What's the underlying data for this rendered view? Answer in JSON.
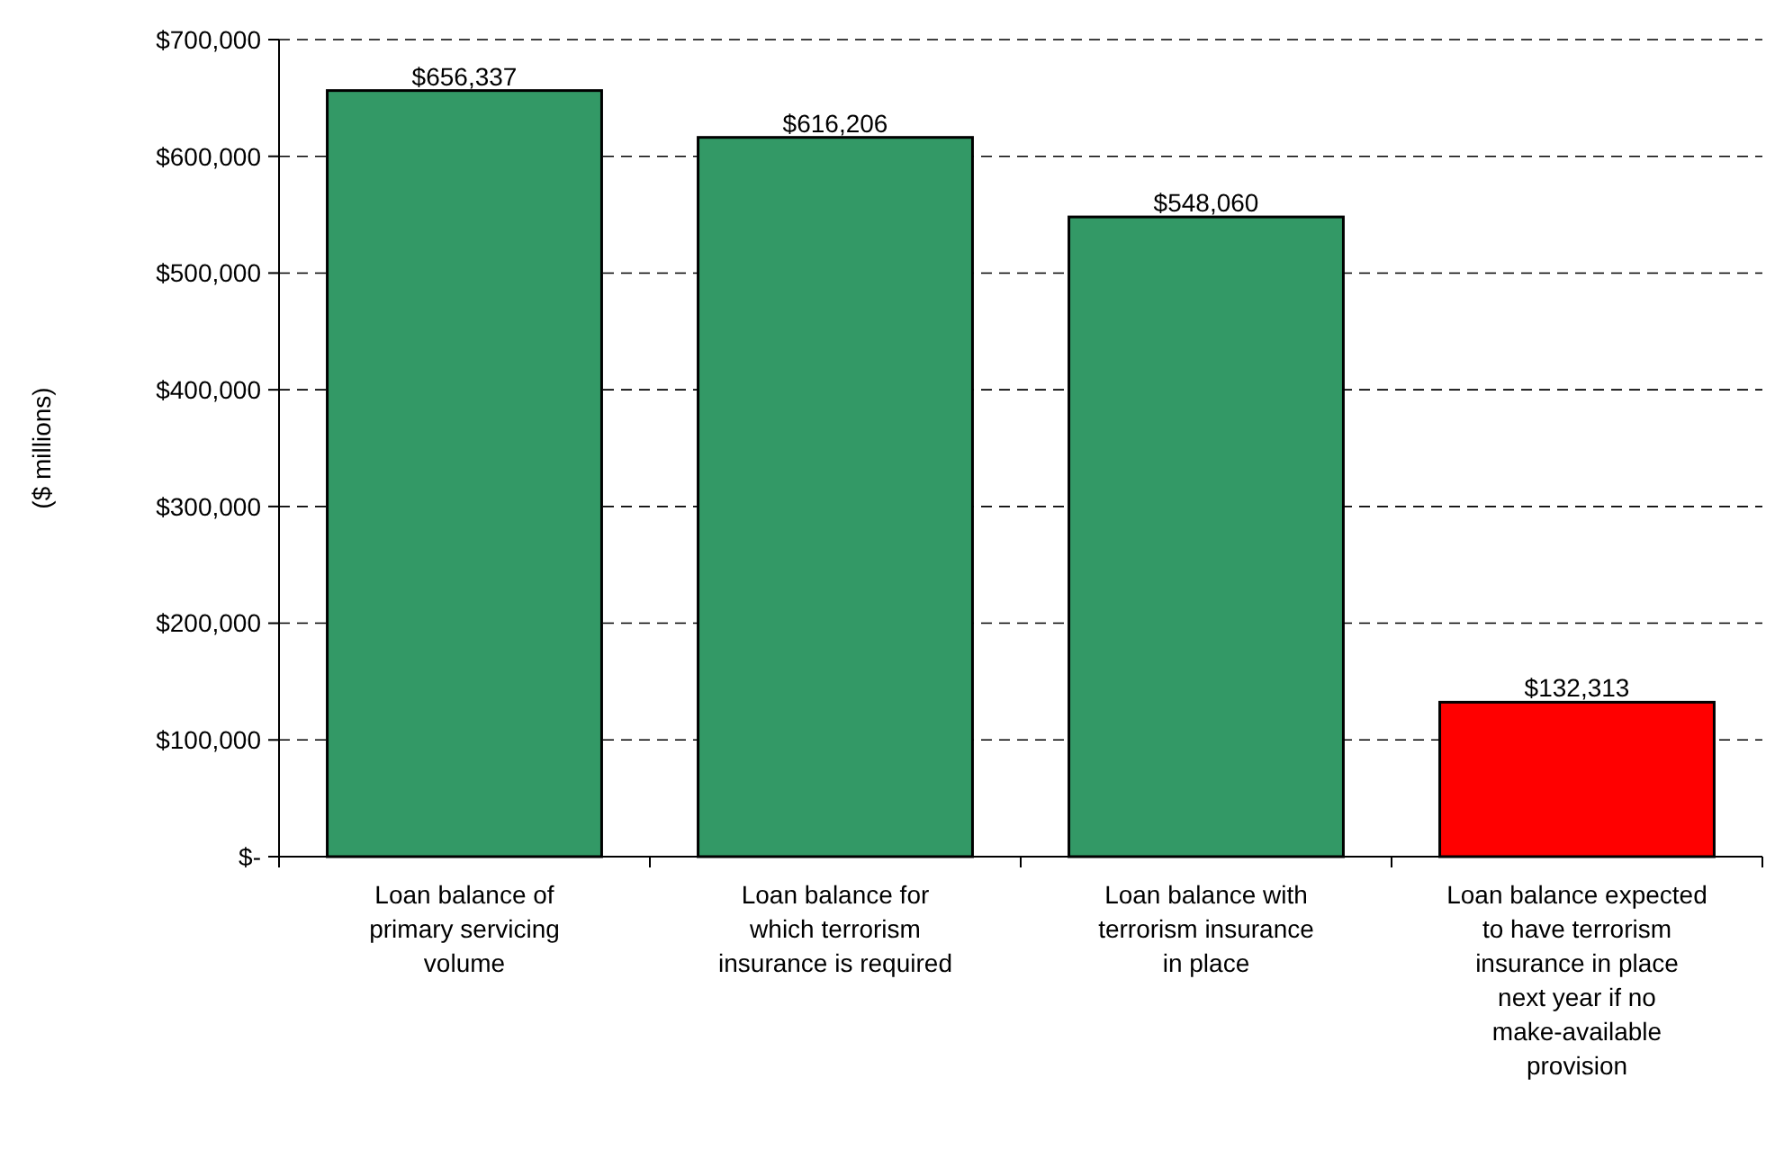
{
  "chart_data": {
    "type": "bar",
    "ylabel": "($ millions)",
    "categories": [
      "Loan balance of primary servicing volume",
      "Loan balance for which terrorism insurance is required",
      "Loan balance with terrorism insurance in place",
      "Loan balance expected to have terrorism insurance in place next year if no make-available provision"
    ],
    "values": [
      656337,
      616206,
      548060,
      132313
    ],
    "colors": [
      "#339966",
      "#339966",
      "#339966",
      "#ff0000"
    ],
    "value_labels": [
      "$656,337",
      "$616,206",
      "$548,060",
      "$132,313"
    ],
    "ylim": [
      0,
      700000
    ],
    "yticks": [
      {
        "value": 0,
        "label": "$-"
      },
      {
        "value": 100000,
        "label": "$100,000"
      },
      {
        "value": 200000,
        "label": "$200,000"
      },
      {
        "value": 300000,
        "label": "$300,000"
      },
      {
        "value": 400000,
        "label": "$400,000"
      },
      {
        "value": 500000,
        "label": "$500,000"
      },
      {
        "value": 600000,
        "label": "$600,000"
      },
      {
        "value": 700000,
        "label": "$700,000"
      }
    ],
    "grid": "y"
  }
}
